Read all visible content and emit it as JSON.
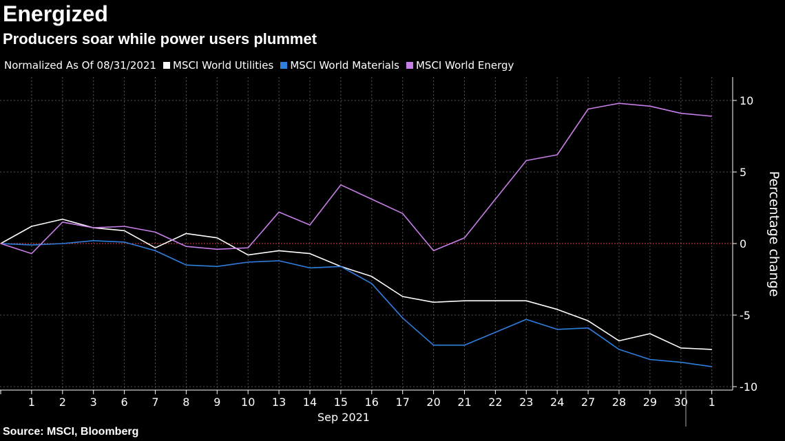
{
  "title": "Energized",
  "subtitle": "Producers soar while power users plummet",
  "legend_note": "Normalized As Of 08/31/2021",
  "source": "Source: MSCI, Bloomberg",
  "colors": {
    "utilities": "#ffffff",
    "materials": "#2f7fe0",
    "energy": "#c77ee8",
    "zero_line": "#d94040",
    "grid": "#555555"
  },
  "chart_data": {
    "type": "line",
    "xlabel": "Sep 2021",
    "ylabel": "Percentage change",
    "ylim": [
      -10,
      11
    ],
    "yticks": [
      10,
      5,
      0,
      -5,
      -10
    ],
    "grid": true,
    "legend_position": "top-left",
    "categories": [
      "",
      "1",
      "2",
      "3",
      "6",
      "7",
      "8",
      "9",
      "10",
      "13",
      "14",
      "15",
      "16",
      "17",
      "20",
      "21",
      "22",
      "23",
      "24",
      "27",
      "28",
      "29",
      "30",
      "1"
    ],
    "x_dates": [
      "2021-08-31",
      "2021-09-01",
      "2021-09-02",
      "2021-09-03",
      "2021-09-06",
      "2021-09-07",
      "2021-09-08",
      "2021-09-09",
      "2021-09-10",
      "2021-09-13",
      "2021-09-14",
      "2021-09-15",
      "2021-09-16",
      "2021-09-17",
      "2021-09-20",
      "2021-09-21",
      "2021-09-22",
      "2021-09-23",
      "2021-09-24",
      "2021-09-27",
      "2021-09-28",
      "2021-09-29",
      "2021-09-30",
      "2021-10-01"
    ],
    "series": [
      {
        "name": "MSCI World Utilities",
        "color_key": "utilities",
        "values": [
          0,
          1.2,
          1.7,
          1.1,
          0.9,
          -0.3,
          0.7,
          0.4,
          -0.8,
          -0.5,
          -0.7,
          -1.6,
          -2.3,
          -3.7,
          -4.1,
          -4.0,
          -4.0,
          -4.0,
          -4.6,
          -5.4,
          -6.8,
          -6.3,
          -7.3,
          -7.4
        ]
      },
      {
        "name": "MSCI World Materials",
        "color_key": "materials",
        "values": [
          0,
          -0.1,
          0.0,
          0.2,
          0.1,
          -0.5,
          -1.5,
          -1.6,
          -1.3,
          -1.2,
          -1.7,
          -1.6,
          -2.8,
          -5.2,
          -7.1,
          -7.1,
          -6.2,
          -5.3,
          -6.0,
          -5.9,
          -7.4,
          -8.1,
          -8.3,
          -8.6
        ]
      },
      {
        "name": "MSCI World Energy",
        "color_key": "energy",
        "values": [
          0,
          -0.7,
          1.5,
          1.1,
          1.2,
          0.8,
          -0.2,
          -0.4,
          -0.3,
          2.2,
          1.3,
          4.1,
          3.1,
          2.1,
          -0.5,
          0.4,
          3.1,
          5.8,
          6.2,
          9.4,
          9.8,
          9.6,
          9.1,
          8.9
        ]
      }
    ]
  }
}
